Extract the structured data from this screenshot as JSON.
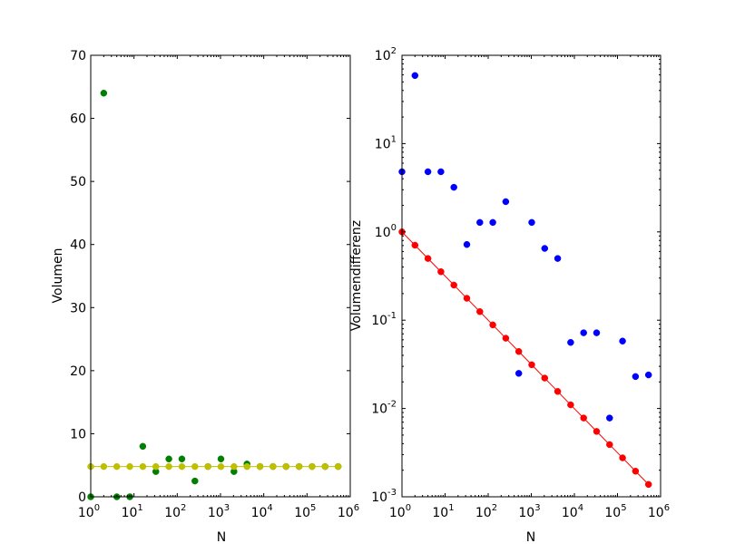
{
  "chart_data": [
    {
      "type": "scatter",
      "xlabel": "N",
      "ylabel": "Volumen",
      "xscale": "log",
      "yscale": "linear",
      "xlim": [
        1,
        1000000
      ],
      "ylim": [
        0,
        70
      ],
      "xtick_base": "10",
      "xtick_exponents": [
        "0",
        "1",
        "2",
        "3",
        "4",
        "5",
        "6"
      ],
      "yticks": [
        "0",
        "10",
        "20",
        "30",
        "40",
        "50",
        "60",
        "70"
      ],
      "grid": false,
      "series": [
        {
          "color": "#008000",
          "style": "markers",
          "x": [
            1,
            2,
            4,
            8,
            16,
            32,
            64,
            128,
            256,
            512,
            1024,
            2048,
            4096,
            8192,
            16384,
            32768,
            65536,
            131072,
            262144,
            524288
          ],
          "y": [
            0,
            64,
            0,
            0,
            8,
            4,
            6,
            6,
            2.5,
            4.8,
            6,
            4,
            5.2,
            4.8,
            4.8,
            4.8,
            4.8,
            4.8,
            4.8,
            4.8
          ]
        },
        {
          "color": "#bfbf00",
          "style": "line-markers",
          "x": [
            1,
            2,
            4,
            8,
            16,
            32,
            64,
            128,
            256,
            512,
            1024,
            2048,
            4096,
            8192,
            16384,
            32768,
            65536,
            131072,
            262144,
            524288
          ],
          "y": [
            4.79,
            4.79,
            4.79,
            4.79,
            4.79,
            4.79,
            4.79,
            4.79,
            4.79,
            4.79,
            4.79,
            4.79,
            4.79,
            4.79,
            4.79,
            4.79,
            4.79,
            4.79,
            4.79,
            4.79
          ]
        }
      ]
    },
    {
      "type": "scatter",
      "xlabel": "N",
      "ylabel": "Volumendifferenz",
      "xscale": "log",
      "yscale": "log",
      "xlim": [
        1,
        1000000
      ],
      "ylim": [
        0.001,
        100
      ],
      "xtick_base": "10",
      "xtick_exponents": [
        "0",
        "1",
        "2",
        "3",
        "4",
        "5",
        "6"
      ],
      "ytick_base": "10",
      "ytick_exponents": [
        "-3",
        "-2",
        "-1",
        "0",
        "1",
        "2"
      ],
      "grid": false,
      "series": [
        {
          "color": "#0000ff",
          "style": "markers",
          "x": [
            1,
            2,
            4,
            8,
            16,
            32,
            64,
            128,
            256,
            512,
            1024,
            2048,
            4096,
            8192,
            16384,
            32768,
            65536,
            131072,
            262144,
            524288
          ],
          "y": [
            4.8,
            59,
            4.8,
            4.8,
            3.2,
            0.72,
            1.28,
            1.28,
            2.2,
            0.025,
            1.28,
            0.65,
            0.5,
            0.056,
            0.072,
            0.072,
            0.0078,
            0.058,
            0.023,
            0.024
          ]
        },
        {
          "color": "#ff0000",
          "style": "line-markers",
          "x": [
            1,
            2,
            4,
            8,
            16,
            32,
            64,
            128,
            256,
            512,
            1024,
            2048,
            4096,
            8192,
            16384,
            32768,
            65536,
            131072,
            262144,
            524288
          ],
          "y": [
            1.0,
            0.707,
            0.5,
            0.354,
            0.25,
            0.177,
            0.125,
            0.0884,
            0.0625,
            0.0442,
            0.03125,
            0.0221,
            0.0156,
            0.011,
            0.0078,
            0.0055,
            0.0039,
            0.00276,
            0.00195,
            0.00138
          ]
        }
      ]
    }
  ]
}
